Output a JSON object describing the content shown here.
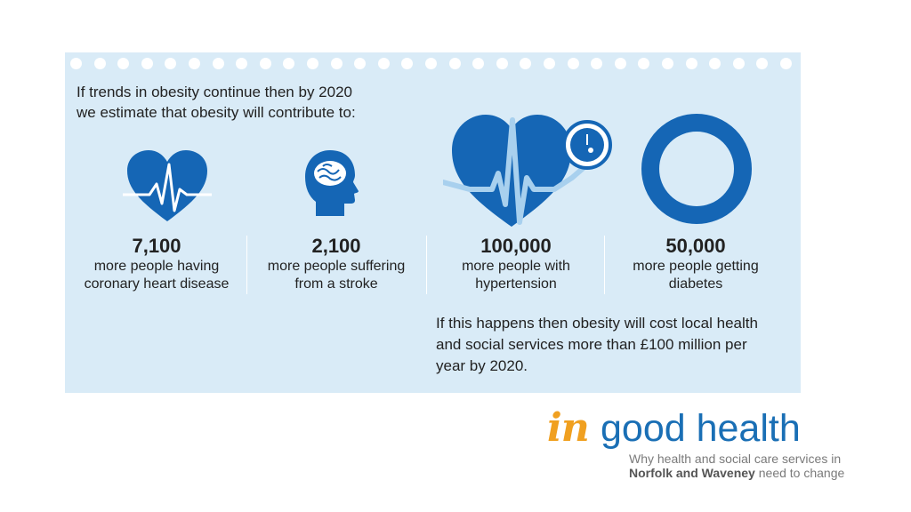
{
  "intro": {
    "line1": "If trends in obesity continue then by 2020",
    "line2": "we estimate that obesity will contribute to:"
  },
  "stats": [
    {
      "number": "7,100",
      "desc1": "more people having",
      "desc2": "coronary heart disease",
      "icon": "heart-pulse-icon"
    },
    {
      "number": "2,100",
      "desc1": "more people suffering",
      "desc2": "from a stroke",
      "icon": "head-brain-icon"
    },
    {
      "number": "100,000",
      "desc1": "more people with",
      "desc2": "hypertension",
      "icon": "heart-pressure-gauge-icon"
    },
    {
      "number": "50,000",
      "desc1": "more people getting",
      "desc2": "diabetes",
      "icon": "diabetes-ring-icon"
    }
  ],
  "cost": {
    "line1": "If this happens then obesity will cost local health",
    "line2": "and social services more than £100 million per",
    "line3": "year by 2020."
  },
  "brand": {
    "in": "in",
    "name": "good health",
    "tagline1": "Why health and social care services in",
    "tagline2_bold": "Norfolk and Waveney",
    "tagline2_rest": " need to change"
  },
  "colors": {
    "panel": "#d9ebf7",
    "icon_blue": "#1566b5",
    "pulse": "#a8d0ee",
    "accent_orange": "#f0a020"
  }
}
